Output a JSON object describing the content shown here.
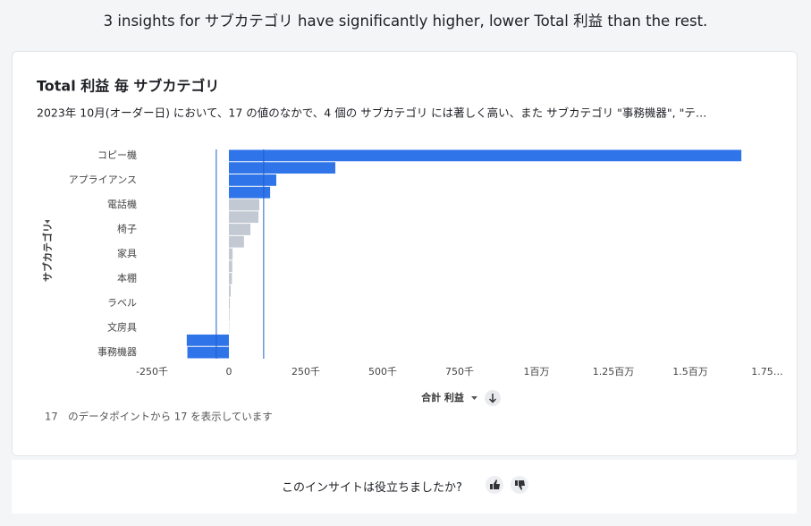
{
  "header": {
    "title": "3 insights for サブカテゴリ have significantly higher, lower Total 利益 than the rest."
  },
  "chart_data": {
    "type": "bar",
    "orientation": "horizontal",
    "title": "Total 利益 毎 サブカテゴリ",
    "subtitle": "2023年 10月(オーダー日) において、17 の値のなかで、4 個の サブカテゴリ には著しく高い、また サブカテゴリ \"事務機器\", \"テ…",
    "xlabel": "合計 利益",
    "ylabel": "サブカテゴリ",
    "categories": [
      "コピー機",
      null,
      "アプライアンス",
      null,
      "電話機",
      null,
      "椅子",
      null,
      "家具",
      null,
      "本棚",
      null,
      "ラベル",
      null,
      "文房具",
      null,
      "事務機器"
    ],
    "values": [
      1666000,
      346000,
      154000,
      134000,
      99000,
      96000,
      70000,
      49000,
      12000,
      11000,
      10000,
      6000,
      3000,
      2000,
      1000,
      -137000,
      -135000
    ],
    "colors": [
      "#2f74e8",
      "#2f74e8",
      "#2f74e8",
      "#2f74e8",
      "#c3c9d2",
      "#c3c9d2",
      "#c3c9d2",
      "#c3c9d2",
      "#c3c9d2",
      "#c3c9d2",
      "#c3c9d2",
      "#c3c9d2",
      "#c3c9d2",
      "#c3c9d2",
      "#c3c9d2",
      "#2f74e8",
      "#2f74e8"
    ],
    "reference_lines": [
      -41000,
      113000
    ],
    "reference_color": "#1f5fc9",
    "xlim": [
      -250000,
      1750000
    ],
    "xticks": [
      {
        "value": -250000,
        "label": "-250千"
      },
      0,
      {
        "value": 250000,
        "label": "250千"
      },
      {
        "value": 500000,
        "label": "500千"
      },
      {
        "value": 750000,
        "label": "750千"
      },
      {
        "value": 1000000,
        "label": "1百万"
      },
      {
        "value": 1250000,
        "label": "1.25百万"
      },
      {
        "value": 1500000,
        "label": "1.5百万"
      },
      {
        "value": 1750000,
        "label": "1.75…"
      }
    ],
    "grid": false
  },
  "note": "17　のデータポイントから 17 を表示しています",
  "feedback": {
    "question": "このインサイトは役立ちましたか?"
  }
}
